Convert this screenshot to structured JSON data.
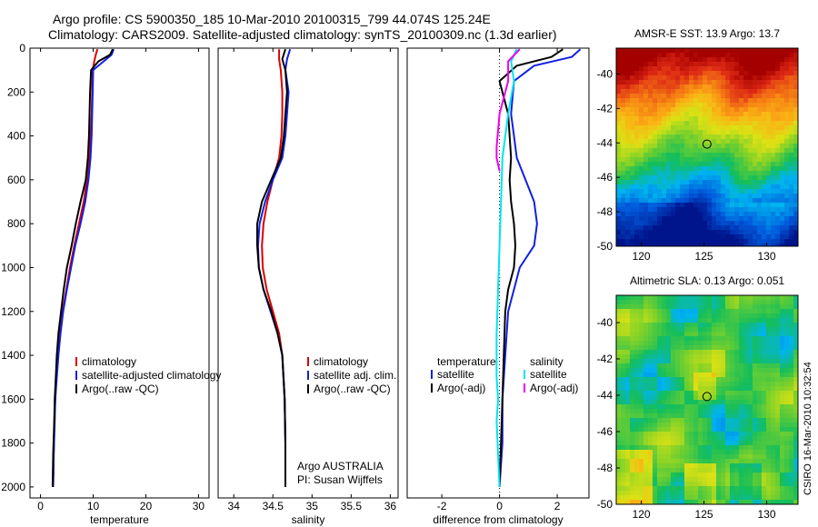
{
  "figure": {
    "title_line1": "Argo profile: CS 5900350_185 10-Mar-2010 20100315_799 44.074S 125.24E",
    "title_line2": "Climatology: CARS2009. Satellite-adjusted climatology: synTS_20100309.nc (1.3d earlier)",
    "side_label": "CSIRO 16-Mar-2010 10:32:54"
  },
  "colors": {
    "climatology": "#dd0000",
    "satellite": "#1020e0",
    "argo": "#000000",
    "salinity_satellite": "#00e5ee",
    "argo_adj": "#ee00ee",
    "grid_zero": "#000000"
  },
  "chart_data": [
    {
      "type": "line",
      "panel": "temperature",
      "xlabel": "temperature",
      "ylabel": "",
      "xlim": [
        -2,
        32
      ],
      "ylim": [
        2050,
        0
      ],
      "xticks": [
        0,
        10,
        20,
        30
      ],
      "yticks": [
        0,
        200,
        400,
        600,
        800,
        1000,
        1200,
        1400,
        1600,
        1800,
        2000
      ],
      "legend": [
        "climatology",
        "satellite-adjusted climatology",
        "Argo(..raw -QC)"
      ],
      "series": [
        {
          "name": "climatology",
          "color": "#dd0000",
          "x": [
            10.8,
            10.5,
            10.2,
            9.9,
            9.8,
            9.7,
            9.5,
            9.2,
            8.8,
            8.2,
            7.3,
            6.4,
            5.6,
            4.9,
            4.2,
            3.7,
            3.3,
            3.0,
            2.8,
            2.6,
            2.5,
            2.4
          ],
          "y": [
            5,
            30,
            60,
            100,
            200,
            300,
            400,
            500,
            600,
            700,
            800,
            900,
            1000,
            1100,
            1200,
            1300,
            1400,
            1500,
            1600,
            1700,
            1850,
            2000
          ]
        },
        {
          "name": "satellite-adjusted climatology",
          "color": "#1020e0",
          "x": [
            13.9,
            13.5,
            12.0,
            10.0,
            9.9,
            9.8,
            9.7,
            9.5,
            9.1,
            8.5,
            7.6,
            6.6,
            5.8,
            5.0,
            4.3,
            3.8,
            3.4,
            3.1,
            2.8,
            2.7,
            2.5,
            2.4
          ],
          "y": [
            5,
            30,
            60,
            100,
            200,
            300,
            400,
            500,
            600,
            700,
            800,
            900,
            1000,
            1100,
            1200,
            1300,
            1400,
            1500,
            1600,
            1700,
            1850,
            2000
          ]
        },
        {
          "name": "Argo(..raw -QC)",
          "color": "#000000",
          "x": [
            13.7,
            13.2,
            11.0,
            9.6,
            9.4,
            9.3,
            9.2,
            9.0,
            8.6,
            7.6,
            6.7,
            5.9,
            5.0,
            4.4,
            3.9,
            3.4,
            3.1,
            2.9,
            2.7,
            2.6,
            2.4,
            2.3
          ],
          "y": [
            5,
            30,
            60,
            100,
            200,
            300,
            400,
            500,
            600,
            700,
            800,
            900,
            1000,
            1100,
            1200,
            1300,
            1400,
            1500,
            1600,
            1700,
            1850,
            2000
          ]
        }
      ]
    },
    {
      "type": "line",
      "panel": "salinity",
      "xlabel": "salinity",
      "ylabel": "",
      "xlim": [
        33.8,
        36.1
      ],
      "ylim": [
        2050,
        0
      ],
      "xticks": [
        34,
        34.5,
        35,
        35.5,
        36
      ],
      "yticks": [],
      "legend": [
        "climatology",
        "satellite adj. clim.",
        "Argo(..raw -QC)"
      ],
      "annotation": [
        "Argo AUSTRALIA",
        "PI: Susan Wijffels"
      ],
      "series": [
        {
          "name": "climatology",
          "color": "#dd0000",
          "x": [
            34.58,
            34.58,
            34.6,
            34.62,
            34.62,
            34.61,
            34.58,
            34.5,
            34.43,
            34.38,
            34.36,
            34.37,
            34.42,
            34.5,
            34.58,
            34.62,
            34.65,
            34.66,
            34.66
          ],
          "y": [
            5,
            50,
            100,
            200,
            300,
            400,
            500,
            600,
            700,
            800,
            900,
            1000,
            1100,
            1200,
            1300,
            1400,
            1600,
            1800,
            2000
          ]
        },
        {
          "name": "satellite adj. clim.",
          "color": "#1020e0",
          "x": [
            34.72,
            34.68,
            34.66,
            34.7,
            34.68,
            34.66,
            34.62,
            34.5,
            34.4,
            34.33,
            34.31,
            34.32,
            34.38,
            34.47,
            34.56,
            34.62,
            34.65,
            34.66,
            34.66
          ],
          "y": [
            5,
            50,
            100,
            200,
            300,
            400,
            500,
            600,
            700,
            800,
            900,
            1000,
            1100,
            1200,
            1300,
            1400,
            1600,
            1800,
            2000
          ]
        },
        {
          "name": "Argo(..raw -QC)",
          "color": "#000000",
          "x": [
            34.66,
            34.62,
            34.66,
            34.68,
            34.66,
            34.64,
            34.6,
            34.48,
            34.36,
            34.3,
            34.3,
            34.32,
            34.38,
            34.48,
            34.56,
            34.62,
            34.65,
            34.66,
            34.66
          ],
          "y": [
            5,
            50,
            100,
            200,
            300,
            400,
            500,
            600,
            700,
            800,
            900,
            1000,
            1100,
            1200,
            1300,
            1400,
            1600,
            1800,
            2000
          ]
        }
      ]
    },
    {
      "type": "line",
      "panel": "difference",
      "xlabel": "difference from climatology",
      "ylabel": "",
      "xlim": [
        -3.2,
        3.1
      ],
      "ylim": [
        2050,
        0
      ],
      "xticks": [
        -2,
        0,
        2
      ],
      "yticks": [],
      "legend": [
        "temperature",
        "satellite",
        "Argo(-adj)",
        "salinity",
        "satellite",
        "Argo(-adj)"
      ],
      "series": [
        {
          "name": "temperature satellite",
          "color": "#1020e0",
          "x": [
            2.8,
            2.5,
            1.2,
            0.5,
            0.4,
            0.5,
            0.6,
            0.9,
            1.2,
            1.3,
            1.2,
            0.7,
            0.5,
            0.3,
            0.2,
            0.1,
            0.1,
            0.0
          ],
          "y": [
            5,
            40,
            80,
            150,
            300,
            400,
            500,
            600,
            700,
            800,
            900,
            1000,
            1100,
            1200,
            1400,
            1600,
            1800,
            2000
          ]
        },
        {
          "name": "temperature Argo(-adj)",
          "color": "#000000",
          "x": [
            2.2,
            1.8,
            0.6,
            0.0,
            0.3,
            0.4,
            0.35,
            0.4,
            0.5,
            0.55,
            0.5,
            0.3,
            0.2,
            0.15,
            0.1,
            0.05,
            0.0
          ],
          "y": [
            5,
            40,
            80,
            150,
            300,
            500,
            600,
            700,
            800,
            900,
            1000,
            1100,
            1200,
            1400,
            1600,
            1800,
            2000
          ]
        },
        {
          "name": "salinity satellite",
          "color": "#00e5ee",
          "x": [
            0.6,
            0.4,
            0.5,
            0.3,
            0.1,
            0.05,
            0.0,
            -0.05,
            -0.1,
            -0.1,
            -0.05,
            -0.1,
            -0.05,
            0.0
          ],
          "y": [
            5,
            60,
            150,
            300,
            500,
            700,
            900,
            1100,
            1300,
            1500,
            1600,
            1700,
            1850,
            2000
          ]
        },
        {
          "name": "salinity Argo(-adj)",
          "color": "#ee00ee",
          "x": [
            0.7,
            0.3,
            0.3,
            0.0,
            -0.1,
            -0.1,
            0.0
          ],
          "y": [
            5,
            60,
            150,
            300,
            450,
            500,
            560
          ]
        }
      ]
    },
    {
      "type": "heatmap",
      "panel": "sst_map",
      "title": "AMSR-E SST: 13.9 Argo: 13.7",
      "xticks": [
        120,
        125,
        130
      ],
      "yticks": [
        -40,
        -42,
        -44,
        -46,
        -48,
        -50
      ],
      "xlim": [
        118,
        132.5
      ],
      "ylim": [
        -50,
        -38.5
      ],
      "marker": {
        "lon": 125.24,
        "lat": -44.07
      }
    },
    {
      "type": "heatmap",
      "panel": "sla_map",
      "title": "Altimetric SLA: 0.13 Argo: 0.051",
      "xticks": [
        120,
        125,
        130
      ],
      "yticks": [
        -40,
        -42,
        -44,
        -46,
        -48,
        -50
      ],
      "xlim": [
        118,
        132.5
      ],
      "ylim": [
        -50,
        -38.5
      ],
      "marker": {
        "lon": 125.24,
        "lat": -44.07
      }
    }
  ]
}
